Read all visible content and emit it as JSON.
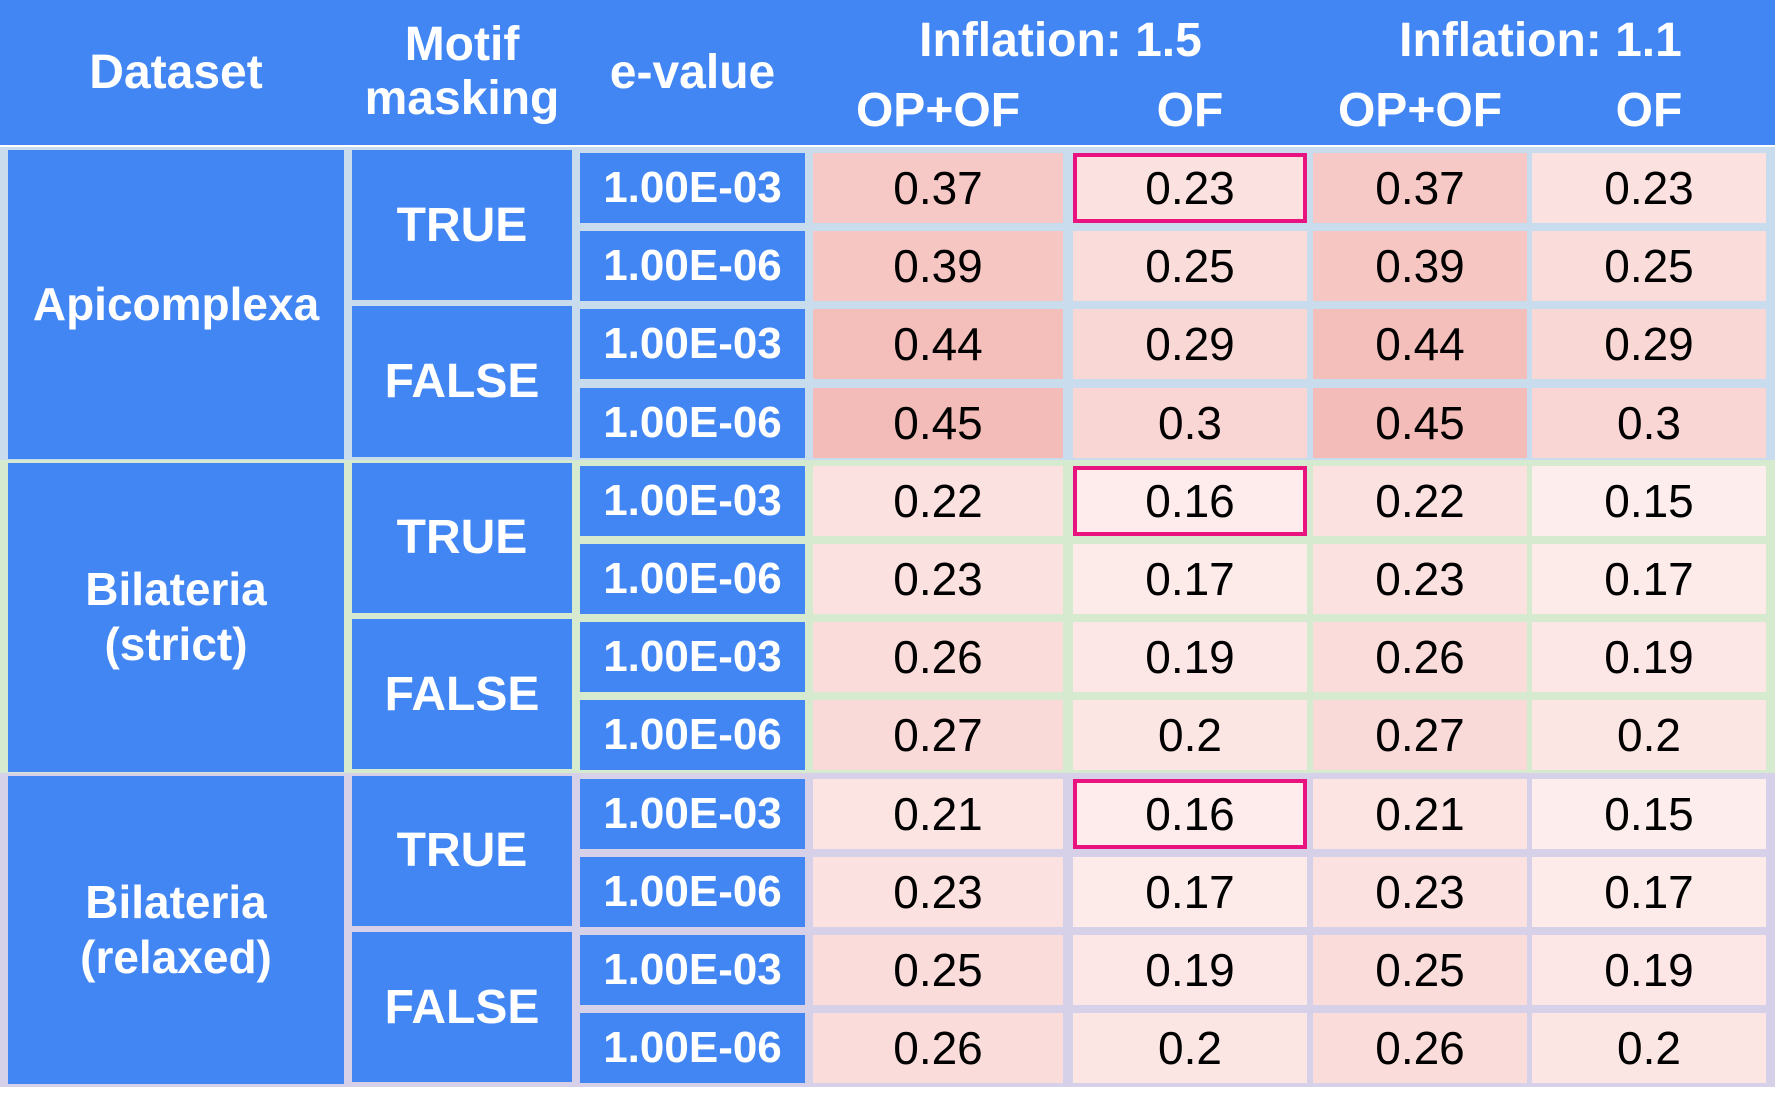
{
  "chart_data": {
    "type": "table",
    "headers": {
      "dataset": "Dataset",
      "motif_masking": "Motif masking",
      "e_value": "e-value",
      "groups": [
        {
          "label": "Inflation: 1.5",
          "columns": [
            "OP+OF",
            "OF"
          ]
        },
        {
          "label": "Inflation: 1.1",
          "columns": [
            "OP+OF",
            "OF"
          ]
        }
      ]
    },
    "datasets": [
      {
        "name": "Apicomplexa",
        "band_color": "#c9dcee",
        "masking": [
          {
            "label": "TRUE",
            "rows": [
              {
                "evalue": "1.00E-03",
                "values": [
                  "0.37",
                  "0.23",
                  "0.37",
                  "0.23"
                ],
                "highlight": 1
              },
              {
                "evalue": "1.00E-06",
                "values": [
                  "0.39",
                  "0.25",
                  "0.39",
                  "0.25"
                ]
              }
            ]
          },
          {
            "label": "FALSE",
            "rows": [
              {
                "evalue": "1.00E-03",
                "values": [
                  "0.44",
                  "0.29",
                  "0.44",
                  "0.29"
                ]
              },
              {
                "evalue": "1.00E-06",
                "values": [
                  "0.45",
                  "0.3",
                  "0.45",
                  "0.3"
                ]
              }
            ]
          }
        ]
      },
      {
        "name": "Bilateria\n(strict)",
        "band_color": "#d6ead0",
        "masking": [
          {
            "label": "TRUE",
            "rows": [
              {
                "evalue": "1.00E-03",
                "values": [
                  "0.22",
                  "0.16",
                  "0.22",
                  "0.15"
                ],
                "highlight": 1
              },
              {
                "evalue": "1.00E-06",
                "values": [
                  "0.23",
                  "0.17",
                  "0.23",
                  "0.17"
                ]
              }
            ]
          },
          {
            "label": "FALSE",
            "rows": [
              {
                "evalue": "1.00E-03",
                "values": [
                  "0.26",
                  "0.19",
                  "0.26",
                  "0.19"
                ]
              },
              {
                "evalue": "1.00E-06",
                "values": [
                  "0.27",
                  "0.2",
                  "0.27",
                  "0.2"
                ]
              }
            ]
          }
        ]
      },
      {
        "name": "Bilateria\n(relaxed)",
        "band_color": "#d6d1e8",
        "masking": [
          {
            "label": "TRUE",
            "rows": [
              {
                "evalue": "1.00E-03",
                "values": [
                  "0.21",
                  "0.16",
                  "0.21",
                  "0.15"
                ],
                "highlight": 1
              },
              {
                "evalue": "1.00E-06",
                "values": [
                  "0.23",
                  "0.17",
                  "0.23",
                  "0.17"
                ]
              }
            ]
          },
          {
            "label": "FALSE",
            "rows": [
              {
                "evalue": "1.00E-03",
                "values": [
                  "0.25",
                  "0.19",
                  "0.25",
                  "0.19"
                ]
              },
              {
                "evalue": "1.00E-06",
                "values": [
                  "0.26",
                  "0.2",
                  "0.26",
                  "0.2"
                ]
              }
            ]
          }
        ]
      }
    ],
    "colors": {
      "header_blue": "#4286f4",
      "highlight_border": "#e8137f",
      "heat_low": "#fdeeed",
      "heat_high": "#f4bcb8"
    }
  }
}
